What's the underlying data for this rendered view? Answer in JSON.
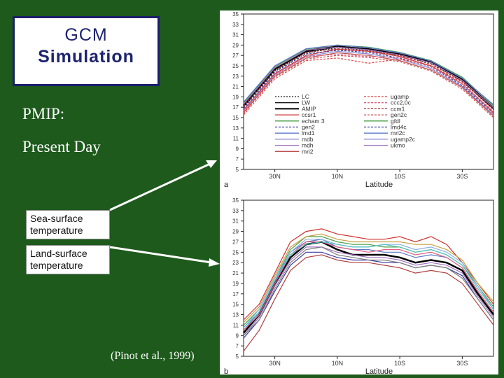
{
  "slide": {
    "title_line1": "GCM",
    "title_line2": "Simulation",
    "subtitle_line1": "PMIP:",
    "subtitle_line2": "Present Day",
    "label_sst_line1": "Sea-surface",
    "label_sst_line2": "temperature",
    "label_lst_line1": "Land-surface",
    "label_lst_line2": "temperature",
    "citation": "(Pinot et al., 1999)"
  },
  "chart_data": [
    {
      "type": "line",
      "panel_label": "a",
      "xlabel": "Latitude",
      "x_ticks": [
        "30N",
        "10N",
        "10S",
        "30S"
      ],
      "ylim": [
        5,
        35
      ],
      "y_ticks": [
        5,
        7,
        9,
        11,
        13,
        15,
        17,
        19,
        21,
        23,
        25,
        27,
        29,
        31,
        33,
        35
      ],
      "x": [
        40,
        30,
        20,
        10,
        0,
        -10,
        -20,
        -30,
        -40
      ],
      "legend": {
        "placement": "lower-center",
        "left": [
          "LC",
          "LW",
          "AMIP",
          "ccsr1",
          "echam 3",
          "gen2",
          "lmd1",
          "mdb",
          "mdh",
          "mri2"
        ],
        "right": [
          "ugamp",
          "ccc2,0c",
          "ccm1",
          "gen2c",
          "gfdl",
          "lmd4c",
          "mri2c",
          "ugamp2c",
          "ukmo"
        ]
      },
      "series": [
        {
          "color": "#1a1a1a",
          "dash": "2,2",
          "values": [
            17.0,
            24.0,
            27.5,
            28.5,
            28.0,
            27.0,
            25.5,
            22.0,
            16.5
          ]
        },
        {
          "color": "#1a1a1a",
          "dash": "",
          "values": [
            17.5,
            24.5,
            28.0,
            28.8,
            28.3,
            27.3,
            25.8,
            22.5,
            17.0
          ]
        },
        {
          "color": "#000000",
          "dash": "",
          "width": 2.5,
          "values": [
            17.3,
            24.3,
            27.8,
            28.7,
            28.2,
            27.2,
            25.7,
            22.3,
            16.8
          ]
        },
        {
          "color": "#d03030",
          "dash": "",
          "values": [
            16.5,
            23.5,
            27.0,
            28.2,
            27.8,
            26.8,
            25.0,
            21.5,
            16.0
          ]
        },
        {
          "color": "#4aa04a",
          "dash": "",
          "values": [
            17.8,
            24.8,
            28.2,
            29.0,
            28.6,
            27.6,
            26.0,
            22.8,
            17.3
          ]
        },
        {
          "color": "#3a3aa0",
          "dash": "3,2",
          "values": [
            16.8,
            23.8,
            27.3,
            28.0,
            27.6,
            26.5,
            24.8,
            21.2,
            15.8
          ]
        },
        {
          "color": "#5a78c8",
          "dash": "",
          "values": [
            18.0,
            25.0,
            28.3,
            29.0,
            28.5,
            27.5,
            25.9,
            22.6,
            17.5
          ]
        },
        {
          "color": "#8a8ad0",
          "dash": "",
          "values": [
            16.3,
            23.3,
            26.8,
            27.8,
            27.3,
            26.3,
            24.5,
            21.0,
            15.5
          ]
        },
        {
          "color": "#a070c0",
          "dash": "",
          "values": [
            17.6,
            24.6,
            28.0,
            28.6,
            28.1,
            27.1,
            25.6,
            22.2,
            16.9
          ]
        },
        {
          "color": "#c05050",
          "dash": "",
          "values": [
            16.0,
            23.0,
            26.5,
            27.5,
            27.0,
            26.0,
            24.2,
            20.8,
            15.3
          ]
        },
        {
          "color": "#e04040",
          "dash": "3,2",
          "values": [
            15.5,
            22.5,
            26.0,
            26.5,
            25.5,
            26.3,
            25.0,
            21.8,
            15.8
          ]
        },
        {
          "color": "#e06080",
          "dash": "3,2",
          "values": [
            16.2,
            23.2,
            26.8,
            27.2,
            26.8,
            26.6,
            24.8,
            21.5,
            16.2
          ]
        },
        {
          "color": "#a03030",
          "dash": "3,2",
          "values": [
            17.2,
            24.2,
            27.6,
            28.3,
            27.9,
            27.0,
            25.3,
            22.0,
            16.6
          ]
        },
        {
          "color": "#d05050",
          "dash": "3,2",
          "values": [
            15.8,
            22.8,
            26.3,
            27.0,
            26.6,
            25.8,
            24.0,
            20.5,
            15.0
          ]
        }
      ]
    },
    {
      "type": "line",
      "panel_label": "b",
      "xlabel": "Latitude",
      "x_ticks": [
        "30N",
        "10N",
        "10S",
        "30S"
      ],
      "ylim": [
        5,
        35
      ],
      "y_ticks": [
        5,
        7,
        9,
        11,
        13,
        15,
        17,
        19,
        21,
        23,
        25,
        27,
        29,
        31,
        33,
        35
      ],
      "x": [
        40,
        35,
        30,
        25,
        20,
        15,
        10,
        5,
        0,
        -5,
        -10,
        -15,
        -20,
        -25,
        -30,
        -35,
        -40
      ],
      "series": [
        {
          "color": "#000000",
          "width": 2.5,
          "values": [
            9.5,
            13.0,
            19.0,
            24.0,
            26.5,
            27.0,
            25.5,
            24.5,
            24.5,
            24.5,
            24.0,
            23.0,
            23.5,
            23.0,
            21.5,
            17.0,
            13.0
          ]
        },
        {
          "color": "#d03030",
          "values": [
            12.0,
            15.0,
            21.0,
            27.0,
            29.0,
            29.5,
            28.5,
            28.0,
            27.5,
            27.5,
            28.0,
            27.0,
            28.0,
            26.5,
            23.0,
            19.0,
            15.0
          ]
        },
        {
          "color": "#4aa04a",
          "values": [
            11.0,
            14.0,
            20.0,
            25.5,
            28.0,
            28.0,
            27.0,
            26.5,
            26.5,
            26.0,
            26.0,
            25.0,
            25.5,
            24.5,
            22.5,
            18.5,
            14.5
          ]
        },
        {
          "color": "#5a78c8",
          "values": [
            10.0,
            13.5,
            19.5,
            25.0,
            27.0,
            27.5,
            26.0,
            25.5,
            25.5,
            25.0,
            25.0,
            24.0,
            24.5,
            24.0,
            22.0,
            17.5,
            13.5
          ]
        },
        {
          "color": "#8ab0e0",
          "values": [
            10.5,
            14.0,
            20.0,
            25.0,
            27.5,
            27.5,
            26.5,
            26.0,
            26.0,
            26.5,
            26.5,
            25.5,
            26.0,
            25.0,
            23.0,
            18.5,
            14.0
          ]
        },
        {
          "color": "#3a3aa0",
          "values": [
            8.5,
            12.0,
            17.5,
            22.5,
            25.0,
            25.0,
            24.0,
            23.5,
            23.5,
            23.0,
            23.0,
            22.0,
            22.5,
            22.0,
            20.5,
            16.0,
            12.0
          ]
        },
        {
          "color": "#a070c0",
          "values": [
            9.0,
            12.5,
            18.5,
            23.5,
            26.0,
            26.0,
            25.0,
            24.5,
            24.0,
            24.0,
            23.5,
            22.5,
            23.0,
            22.5,
            21.0,
            16.5,
            12.5
          ]
        },
        {
          "color": "#c8a040",
          "values": [
            11.5,
            14.5,
            20.5,
            26.0,
            28.0,
            28.5,
            27.5,
            27.0,
            27.0,
            27.0,
            27.0,
            26.5,
            26.5,
            25.5,
            23.5,
            19.0,
            15.5
          ]
        },
        {
          "color": "#e06080",
          "values": [
            10.0,
            13.0,
            19.0,
            24.5,
            27.0,
            27.0,
            26.0,
            25.5,
            25.0,
            25.5,
            25.5,
            24.5,
            25.0,
            24.0,
            22.0,
            17.5,
            13.5
          ]
        },
        {
          "color": "#808080",
          "values": [
            9.0,
            12.0,
            18.0,
            23.0,
            25.5,
            26.0,
            24.5,
            24.0,
            23.5,
            23.5,
            23.0,
            22.0,
            22.5,
            22.0,
            20.0,
            16.0,
            12.0
          ]
        },
        {
          "color": "#50c0c0",
          "values": [
            10.5,
            13.5,
            19.5,
            24.5,
            26.5,
            27.0,
            26.5,
            26.0,
            26.0,
            26.5,
            26.0,
            25.0,
            25.5,
            24.5,
            22.5,
            18.0,
            14.0
          ]
        },
        {
          "color": "#b04040",
          "values": [
            6.0,
            10.0,
            16.0,
            21.5,
            24.0,
            24.5,
            23.5,
            23.0,
            23.0,
            22.5,
            22.0,
            21.0,
            21.5,
            21.0,
            19.0,
            15.0,
            11.0
          ]
        }
      ]
    }
  ]
}
